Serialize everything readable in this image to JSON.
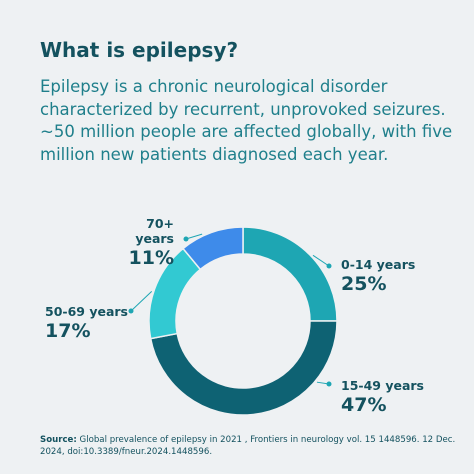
{
  "title": "What is epilepsy?",
  "intro": "Epilepsy is a chronic neurological disorder characterized by recurrent, unprovoked seizures. ~50 million people are affected globally, with five million new patients diagnosed each year.",
  "chart_data": {
    "type": "pie",
    "variant": "donut",
    "categories": [
      "0-14 years",
      "15-49 years",
      "50-69 years",
      "70+ years"
    ],
    "values": [
      25,
      47,
      17,
      11
    ],
    "labels": [
      "25%",
      "47%",
      "17%",
      "11%"
    ],
    "colors": [
      "#1ea6b3",
      "#0e6273",
      "#32c9d2",
      "#3e8bea"
    ],
    "legend": "inline-callouts"
  },
  "source": {
    "label": "Source:",
    "text": "Global prevalence of epilepsy in 2021 , Frontiers in neurology vol. 15 1448596. 12 Dec. 2024, doi:10.3389/fneur.2024.1448596."
  },
  "colors": {
    "background": "#eef1f3",
    "title": "#14525f",
    "body_text": "#1f7f8b",
    "callout_line": "#1ea6b3"
  }
}
